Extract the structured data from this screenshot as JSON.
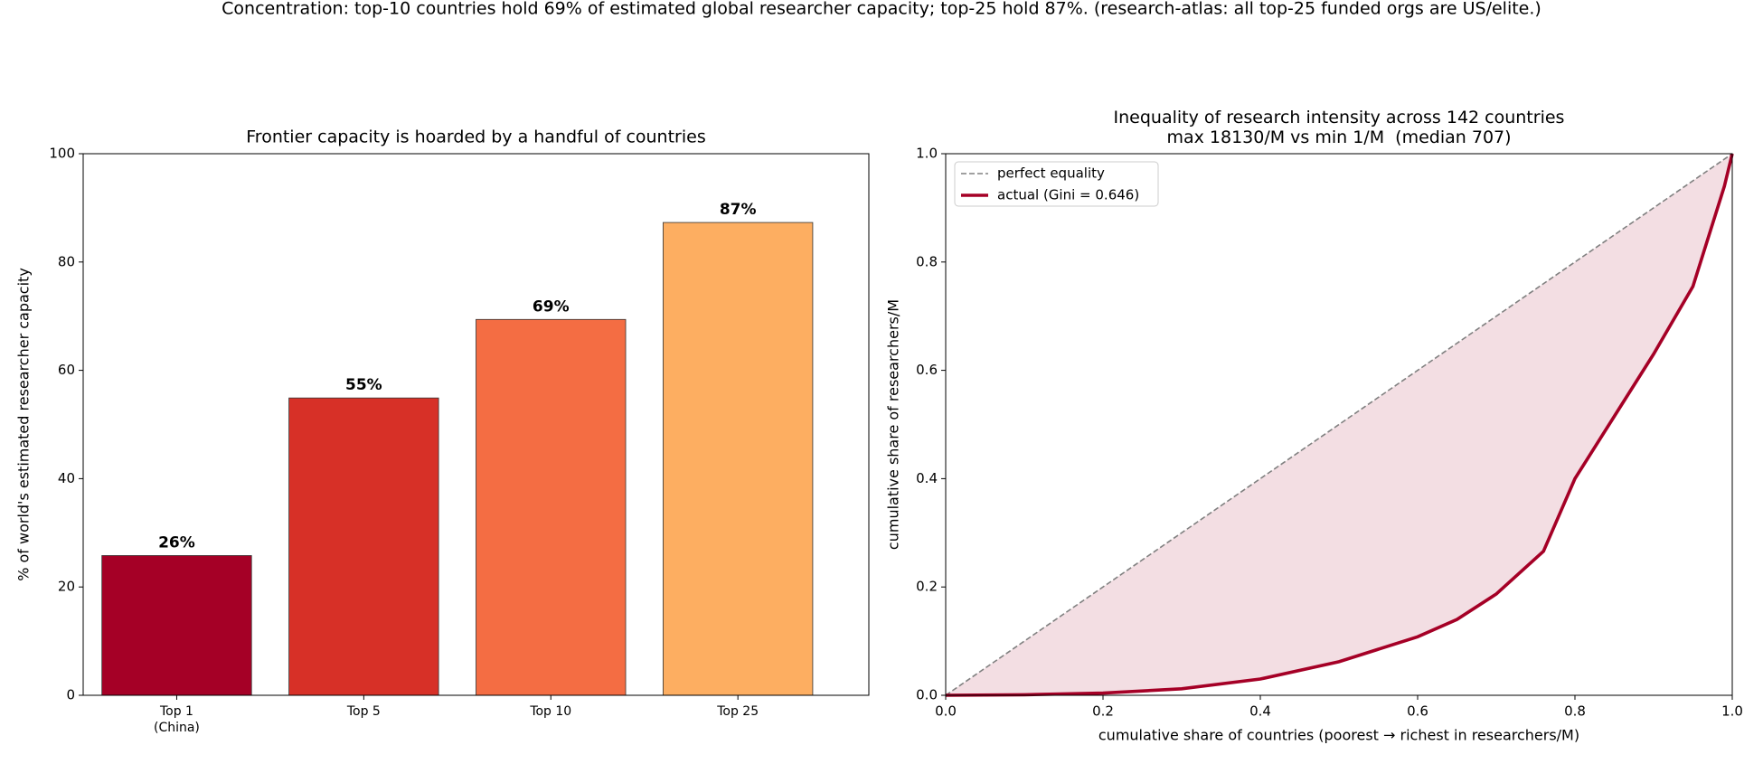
{
  "title": "Concentration: top-10 countries hold 69% of estimated global researcher capacity; top-25 hold 87%. (research-atlas: all top-25 funded orgs are US/elite.)",
  "chart_data": [
    {
      "type": "bar",
      "title": "Frontier capacity is hoarded by a handful of countries",
      "ylabel": "% of world's estimated researcher capacity",
      "categories": [
        "Top 1\n(China)",
        "Top 5",
        "Top 10",
        "Top 25"
      ],
      "values": [
        25.8,
        54.9,
        69.4,
        87.3
      ],
      "value_labels": [
        "26%",
        "55%",
        "69%",
        "87%"
      ],
      "colors": [
        "#a50026",
        "#d73027",
        "#f46d43",
        "#fdae61"
      ],
      "ylim": [
        0,
        100
      ],
      "yticks": [
        0,
        20,
        40,
        60,
        80,
        100
      ]
    },
    {
      "type": "line",
      "title": "Inequality of research intensity across 142 countries\nmax 18130/M vs min 1/M  (median 707)",
      "xlabel": "cumulative share of countries (poorest → richest in researchers/M)",
      "ylabel": "cumulative share of researchers/M",
      "legend": "upper left",
      "fill_between": true,
      "series": [
        {
          "name": "perfect equality",
          "color": "#808080",
          "dashed": true,
          "x": [
            0,
            1
          ],
          "values": [
            0,
            1
          ]
        },
        {
          "name": "actual (Gini = 0.646)",
          "color": "#a50026",
          "x": [
            0,
            0.1,
            0.2,
            0.3,
            0.4,
            0.5,
            0.6,
            0.65,
            0.7,
            0.76,
            0.8,
            0.85,
            0.9,
            0.95,
            0.99,
            1
          ],
          "values": [
            0,
            0.001,
            0.004,
            0.012,
            0.03,
            0.062,
            0.108,
            0.14,
            0.187,
            0.266,
            0.4,
            0.515,
            0.63,
            0.755,
            0.94,
            1
          ]
        }
      ],
      "xlim": [
        0,
        1
      ],
      "ylim": [
        0,
        1
      ],
      "xticks": [
        {
          "value": 0,
          "label": "0.0"
        },
        {
          "value": 0.2,
          "label": "0.2"
        },
        {
          "value": 0.4,
          "label": "0.4"
        },
        {
          "value": 0.6,
          "label": "0.6"
        },
        {
          "value": 0.8,
          "label": "0.8"
        },
        {
          "value": 1,
          "label": "1.0"
        }
      ],
      "yticks": [
        {
          "value": 0,
          "label": "0.0"
        },
        {
          "value": 0.2,
          "label": "0.2"
        },
        {
          "value": 0.4,
          "label": "0.4"
        },
        {
          "value": 0.6,
          "label": "0.6"
        },
        {
          "value": 0.8,
          "label": "0.8"
        },
        {
          "value": 1,
          "label": "1.0"
        }
      ]
    }
  ]
}
